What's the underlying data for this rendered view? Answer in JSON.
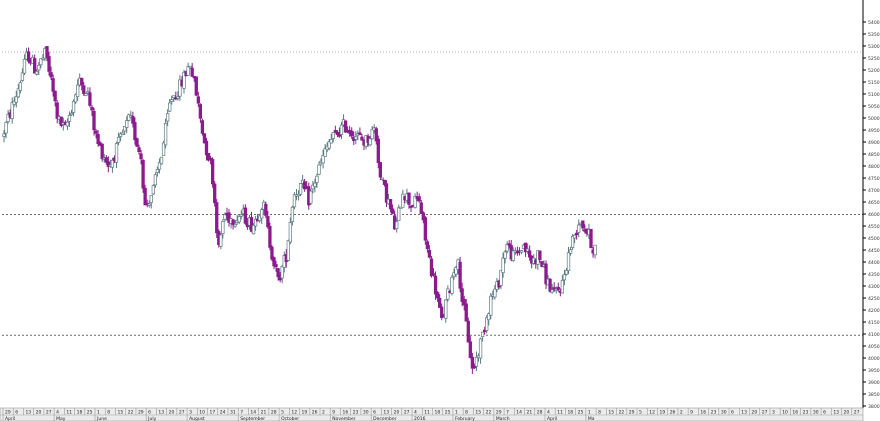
{
  "chart_data": {
    "type": "candlestick",
    "ylim": [
      3800,
      5450
    ],
    "y_ticks": [
      3800,
      3850,
      3900,
      3950,
      4000,
      4050,
      4100,
      4150,
      4200,
      4250,
      4300,
      4350,
      4400,
      4450,
      4500,
      4550,
      4600,
      4650,
      4700,
      4750,
      4800,
      4850,
      4900,
      4950,
      5000,
      5050,
      5100,
      5150,
      5200,
      5250,
      5300,
      5350,
      5400
    ],
    "y_tick_labels": [
      "3800",
      "3850",
      "3900",
      "3950",
      "4000",
      "4050",
      "4100",
      "4150",
      "4200",
      "4250",
      "4300",
      "4350",
      "4400",
      "4450",
      "4500",
      "4550",
      "4600",
      "4650",
      "4700",
      "4750",
      "4800",
      "4850",
      "4900",
      "4950",
      "5000",
      "5050",
      "5100",
      "5150",
      "5200",
      "5250",
      "5300",
      "5350",
      "5400"
    ],
    "reference_lines": [
      {
        "value": 5275,
        "style": "dotted-light"
      },
      {
        "value": 4598,
        "style": "dashed"
      },
      {
        "value": 4095,
        "style": "dashed"
      }
    ],
    "day_labels": [
      "29",
      "6",
      "13",
      "20",
      "27",
      "4",
      "11",
      "18",
      "25",
      "1",
      "8",
      "15",
      "22",
      "29",
      "6",
      "13",
      "20",
      "27",
      "3",
      "10",
      "17",
      "24",
      "31",
      "7",
      "14",
      "21",
      "28",
      "5",
      "12",
      "19",
      "26",
      "2",
      "9",
      "16",
      "23",
      "30",
      "6",
      "13",
      "20",
      "27",
      "4",
      "11",
      "18",
      "25",
      "1",
      "8",
      "15",
      "22",
      "29",
      "7",
      "14",
      "21",
      "28",
      "4",
      "11",
      "18",
      "25",
      "1",
      "8",
      "15",
      "22",
      "29",
      "5",
      "12",
      "19",
      "26",
      "2",
      "9",
      "16",
      "23",
      "30",
      "6",
      "13",
      "20",
      "27",
      "3",
      "10",
      "16",
      "23",
      "30",
      "6",
      "13",
      "20",
      "27"
    ],
    "month_labels": [
      {
        "label": "April",
        "week": 0
      },
      {
        "label": "May",
        "week": 5
      },
      {
        "label": "June",
        "week": 9
      },
      {
        "label": "July",
        "week": 14
      },
      {
        "label": "August",
        "week": 18
      },
      {
        "label": "September",
        "week": 23
      },
      {
        "label": "October",
        "week": 27
      },
      {
        "label": "November",
        "week": 32
      },
      {
        "label": "December",
        "week": 36
      },
      {
        "label": "2016",
        "week": 40
      },
      {
        "label": "February",
        "week": 44
      },
      {
        "label": "March",
        "week": 48
      },
      {
        "label": "April",
        "week": 53
      },
      {
        "label": "Ma",
        "week": 57
      }
    ],
    "candles_start_week": 0,
    "candles_end_week": 58,
    "anchors": [
      [
        0,
        4920
      ],
      [
        1.5,
        5110
      ],
      [
        2.5,
        5270
      ],
      [
        3.3,
        5200
      ],
      [
        4.3,
        5270
      ],
      [
        5.5,
        4990
      ],
      [
        6.2,
        4950
      ],
      [
        7.5,
        5150
      ],
      [
        8.3,
        5120
      ],
      [
        9.3,
        4900
      ],
      [
        10.5,
        4800
      ],
      [
        11.5,
        4900
      ],
      [
        12.5,
        5000
      ],
      [
        13.6,
        4840
      ],
      [
        14,
        4630
      ],
      [
        14.8,
        4700
      ],
      [
        15.7,
        4870
      ],
      [
        16.5,
        5080
      ],
      [
        17.3,
        5120
      ],
      [
        18.4,
        5230
      ],
      [
        19,
        5100
      ],
      [
        19.8,
        4900
      ],
      [
        20.5,
        4800
      ],
      [
        21.2,
        4450
      ],
      [
        21.7,
        4600
      ],
      [
        22.5,
        4580
      ],
      [
        23.5,
        4600
      ],
      [
        24.5,
        4550
      ],
      [
        25.5,
        4650
      ],
      [
        26.2,
        4480
      ],
      [
        27,
        4320
      ],
      [
        27.8,
        4430
      ],
      [
        28.5,
        4680
      ],
      [
        29.3,
        4720
      ],
      [
        30,
        4660
      ],
      [
        31,
        4790
      ],
      [
        32,
        4900
      ],
      [
        33.5,
        4970
      ],
      [
        34.5,
        4930
      ],
      [
        35.5,
        4900
      ],
      [
        36.5,
        4960
      ],
      [
        37,
        4750
      ],
      [
        37.8,
        4650
      ],
      [
        38.5,
        4530
      ],
      [
        39.2,
        4700
      ],
      [
        40,
        4640
      ],
      [
        40.8,
        4660
      ],
      [
        41.5,
        4470
      ],
      [
        42.3,
        4310
      ],
      [
        43,
        4150
      ],
      [
        43.8,
        4300
      ],
      [
        44.5,
        4420
      ],
      [
        45,
        4250
      ],
      [
        45.6,
        4080
      ],
      [
        46,
        3950
      ],
      [
        46.5,
        4010
      ],
      [
        47,
        4100
      ],
      [
        47.8,
        4250
      ],
      [
        48.5,
        4300
      ],
      [
        49.3,
        4480
      ],
      [
        50,
        4420
      ],
      [
        51,
        4470
      ],
      [
        51.8,
        4400
      ],
      [
        52.5,
        4430
      ],
      [
        53.3,
        4320
      ],
      [
        54,
        4260
      ],
      [
        54.8,
        4310
      ],
      [
        55.5,
        4450
      ],
      [
        56.5,
        4580
      ],
      [
        57.3,
        4520
      ],
      [
        57.8,
        4460
      ]
    ],
    "colors": {
      "down": "#8b1a8e",
      "up_body": "#ffffff",
      "up_outline": "#5a7a80",
      "grid": "#8a8a8a",
      "axis": "#000000",
      "axis_strip": "#ececec"
    }
  }
}
